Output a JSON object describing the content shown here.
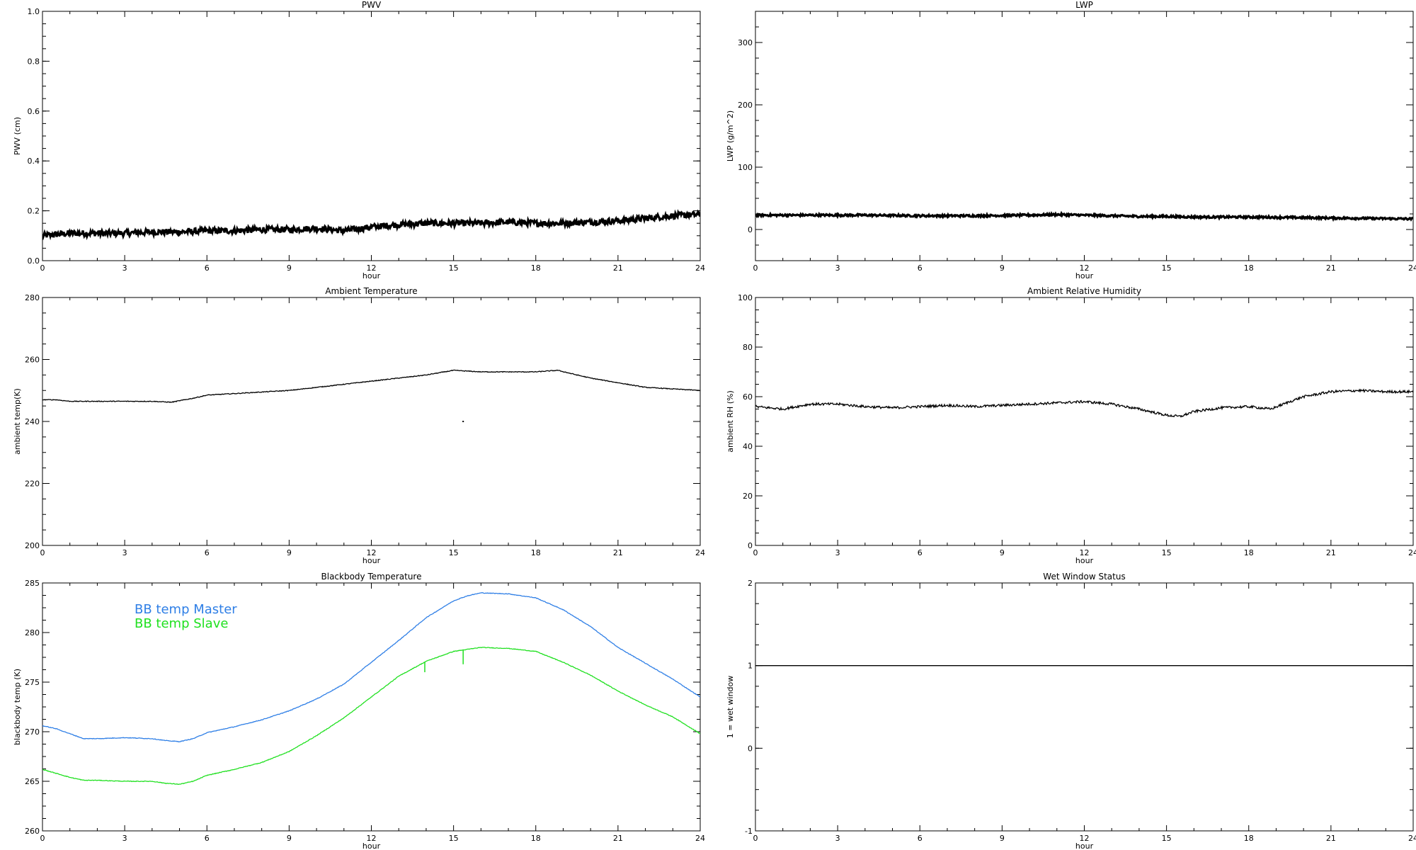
{
  "chart_data": [
    {
      "id": "pwv",
      "type": "line",
      "title": "PWV",
      "xlabel": "hour",
      "ylabel": "PWV (cm)",
      "xlim": [
        0,
        24
      ],
      "ylim": [
        0,
        1.0
      ],
      "xticks": [
        "0",
        "3",
        "6",
        "9",
        "12",
        "15",
        "18",
        "21",
        "24"
      ],
      "yticks": [
        "0.0",
        "0.2",
        "0.4",
        "0.6",
        "0.8",
        "1.0"
      ],
      "series": [
        {
          "color": "#000000",
          "noise": 0.012,
          "style": "thick",
          "x": [
            0,
            1,
            2,
            3,
            4,
            5,
            6,
            7,
            8,
            9,
            10,
            11,
            12,
            13,
            14,
            15,
            16,
            17,
            18,
            19,
            20,
            21,
            22,
            23,
            24
          ],
          "y": [
            0.1,
            0.11,
            0.11,
            0.11,
            0.115,
            0.115,
            0.12,
            0.12,
            0.125,
            0.125,
            0.13,
            0.12,
            0.135,
            0.145,
            0.15,
            0.15,
            0.15,
            0.155,
            0.15,
            0.15,
            0.155,
            0.16,
            0.17,
            0.18,
            0.185
          ]
        }
      ]
    },
    {
      "id": "lwp",
      "type": "line",
      "title": "LWP",
      "xlabel": "hour",
      "ylabel": "LWP (g/m^2)",
      "xlim": [
        0,
        24
      ],
      "ylim": [
        -50,
        350
      ],
      "xticks": [
        "0",
        "3",
        "6",
        "9",
        "12",
        "15",
        "18",
        "21",
        "24"
      ],
      "yticks": [
        "0",
        "100",
        "200",
        "300"
      ],
      "ytick_values": [
        0,
        100,
        200,
        300
      ],
      "series": [
        {
          "color": "#000000",
          "noise": 1.6,
          "style": "thick",
          "x": [
            0,
            2,
            4,
            6,
            8,
            10,
            11,
            12,
            14,
            15,
            16,
            18,
            20,
            22,
            24
          ],
          "y": [
            23,
            23,
            23,
            22,
            22,
            23,
            24,
            23,
            21,
            21,
            20,
            20,
            19,
            18,
            17
          ]
        }
      ]
    },
    {
      "id": "ambient-temp",
      "type": "line",
      "title": "Ambient Temperature",
      "xlabel": "hour",
      "ylabel": "ambient temp(K)",
      "xlim": [
        0,
        24
      ],
      "ylim": [
        200,
        280
      ],
      "xticks": [
        "0",
        "3",
        "6",
        "9",
        "12",
        "15",
        "18",
        "21",
        "24"
      ],
      "yticks": [
        "200",
        "220",
        "240",
        "260",
        "280"
      ],
      "ytick_values": [
        200,
        220,
        240,
        260,
        280
      ],
      "series": [
        {
          "color": "#000000",
          "noise": 0.12,
          "style": "thin",
          "x": [
            0,
            0.5,
            1,
            2,
            3,
            4,
            4.7,
            5.5,
            6,
            7,
            8,
            9,
            10,
            11,
            12,
            13,
            14,
            15,
            16,
            17,
            18,
            18.8,
            19.5,
            20,
            21,
            22,
            23,
            24
          ],
          "y": [
            247,
            247,
            246.5,
            246.5,
            246.5,
            246.5,
            246.2,
            247.5,
            248.5,
            249,
            249.5,
            250,
            251,
            252,
            253,
            254,
            255,
            256.5,
            256,
            256,
            256,
            256.5,
            255,
            254,
            252.5,
            251,
            250.5,
            250
          ]
        }
      ],
      "outliers": [
        {
          "x": 15.35,
          "y": 240
        }
      ]
    },
    {
      "id": "ambient-rh",
      "type": "line",
      "title": "Ambient Relative Humidity",
      "xlabel": "hour",
      "ylabel": "ambient RH (%)",
      "xlim": [
        0,
        24
      ],
      "ylim": [
        0,
        100
      ],
      "xticks": [
        "0",
        "3",
        "6",
        "9",
        "12",
        "15",
        "18",
        "21",
        "24"
      ],
      "yticks": [
        "0",
        "20",
        "40",
        "60",
        "80",
        "100"
      ],
      "ytick_values": [
        0,
        20,
        40,
        60,
        80,
        100
      ],
      "series": [
        {
          "color": "#000000",
          "noise": 0.5,
          "style": "thin",
          "x": [
            0,
            0.5,
            1,
            1.5,
            2,
            3,
            4,
            5,
            6,
            7,
            8,
            9,
            10,
            11,
            12,
            13,
            14,
            15,
            15.5,
            16,
            17,
            18,
            18.8,
            19.5,
            20,
            21,
            22,
            23,
            24
          ],
          "y": [
            56,
            55.5,
            55,
            56,
            57,
            57,
            56,
            55.5,
            56,
            56.5,
            56,
            56.5,
            57,
            57.5,
            58,
            57,
            55,
            52.5,
            52,
            54,
            55.5,
            56,
            55,
            58,
            60,
            62,
            62.5,
            62,
            62
          ]
        }
      ]
    },
    {
      "id": "blackbody-temp",
      "type": "line",
      "title": "Blackbody Temperature",
      "xlabel": "hour",
      "ylabel": "blackbody temp (K)",
      "xlim": [
        0,
        24
      ],
      "ylim": [
        260,
        285
      ],
      "xticks": [
        "0",
        "3",
        "6",
        "9",
        "12",
        "15",
        "18",
        "21",
        "24"
      ],
      "yticks": [
        "260",
        "265",
        "270",
        "275",
        "280",
        "285"
      ],
      "ytick_values": [
        260,
        265,
        270,
        275,
        280,
        285
      ],
      "legend": {
        "placement": "top-left"
      },
      "series": [
        {
          "name": "BB temp Master",
          "color": "#2f7fe6",
          "noise": 0.03,
          "style": "thin",
          "x": [
            0,
            0.5,
            1,
            1.5,
            2,
            3,
            4,
            4.5,
            5,
            5.5,
            6,
            7,
            8,
            9,
            10,
            11,
            12,
            13,
            14,
            15,
            15.5,
            16,
            17,
            18,
            19,
            20,
            21,
            22,
            23,
            24
          ],
          "y": [
            270.6,
            270.3,
            269.8,
            269.3,
            269.3,
            269.4,
            269.3,
            269.1,
            269.0,
            269.3,
            269.9,
            270.5,
            271.2,
            272.1,
            273.3,
            274.8,
            277.0,
            279.2,
            281.5,
            283.2,
            283.7,
            284.0,
            283.9,
            283.5,
            282.3,
            280.6,
            278.5,
            276.9,
            275.3,
            273.5
          ]
        },
        {
          "name": "BB temp Slave",
          "color": "#20e020",
          "noise": 0.03,
          "style": "thin",
          "x": [
            0,
            0.5,
            1,
            1.5,
            2,
            3,
            4,
            4.5,
            5,
            5.5,
            6,
            7,
            8,
            9,
            10,
            11,
            12,
            13,
            14,
            15,
            15.5,
            16,
            17,
            18,
            19,
            20,
            21,
            22,
            23,
            24
          ],
          "y": [
            266.2,
            265.8,
            265.4,
            265.1,
            265.1,
            265.0,
            265.0,
            264.8,
            264.7,
            265.0,
            265.6,
            266.2,
            266.9,
            268.0,
            269.6,
            271.4,
            273.5,
            275.6,
            277.1,
            278.1,
            278.3,
            278.5,
            278.4,
            278.1,
            277.0,
            275.7,
            274.1,
            272.7,
            271.5,
            269.8
          ]
        }
      ],
      "dips": [
        {
          "series": 1,
          "x": 13.95,
          "y_low": 276.0
        },
        {
          "series": 1,
          "x": 15.35,
          "y_low": 276.8
        }
      ]
    },
    {
      "id": "wet-window",
      "type": "line",
      "title": "Wet Window Status",
      "xlabel": "hour",
      "ylabel": "1 = wet window",
      "xlim": [
        0,
        24
      ],
      "ylim": [
        -1,
        2
      ],
      "xticks": [
        "0",
        "3",
        "6",
        "9",
        "12",
        "15",
        "18",
        "21",
        "24"
      ],
      "yticks": [
        "-1",
        "0",
        "1",
        "2"
      ],
      "ytick_values": [
        -1,
        0,
        1,
        2
      ],
      "series": [
        {
          "color": "#000000",
          "noise": 0,
          "style": "thin",
          "x": [
            0,
            24
          ],
          "y": [
            1,
            1
          ]
        }
      ]
    }
  ]
}
